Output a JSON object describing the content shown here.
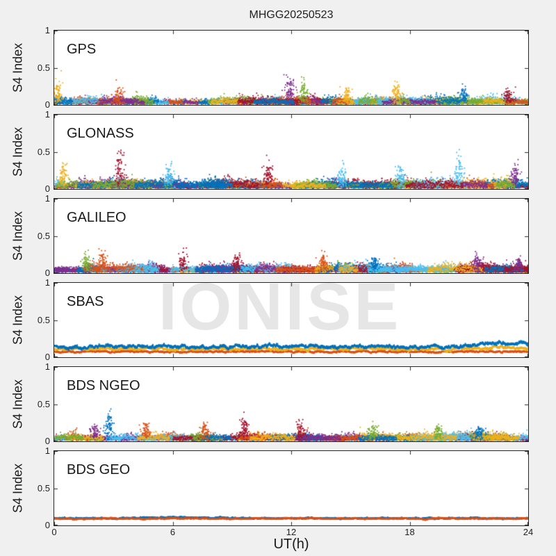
{
  "figure": {
    "background": "#f0f0f0",
    "panel_background": "#ffffff",
    "border_color": "#262626",
    "tick_color": "#262626",
    "text_color": "#1f1f1f"
  },
  "watermark": {
    "text": "IONISE",
    "color": "#e6e6e6"
  },
  "chart_data": {
    "type": "scatter",
    "title": "MHGG20250523",
    "xlabel": "UT(h)",
    "ylabel": "S4 Index",
    "xlim": [
      0,
      24
    ],
    "ylim": [
      0,
      1
    ],
    "xticks": [
      0,
      6,
      12,
      18,
      24
    ],
    "xtick_labels": [
      "0",
      "6",
      "12",
      "18",
      "24"
    ],
    "yticks": [
      0,
      0.5,
      1
    ],
    "ytick_labels": [
      "0",
      "0.5",
      "1"
    ],
    "grid": false,
    "legend": "none",
    "palette": [
      "#0072BD",
      "#D95319",
      "#EDB120",
      "#7E2F8E",
      "#77AC30",
      "#4DBEEE",
      "#A2142F"
    ],
    "panels": [
      {
        "label": "GPS",
        "kind": "scatter",
        "seed": 11,
        "base": 0.05,
        "amp": [
          0.015,
          0.05
        ],
        "arcs": 52,
        "typical_range": [
          0,
          0.2
        ],
        "spikes": [
          {
            "t": 0.15,
            "h": 0.27,
            "c": 2
          },
          {
            "t": 3.2,
            "h": 0.2,
            "c": 1
          },
          {
            "t": 11.9,
            "h": 0.33,
            "c": 3
          },
          {
            "t": 12.6,
            "h": 0.27,
            "c": 4
          },
          {
            "t": 14.8,
            "h": 0.2,
            "c": 2
          },
          {
            "t": 17.3,
            "h": 0.24,
            "c": 2
          },
          {
            "t": 20.7,
            "h": 0.22,
            "c": 0
          },
          {
            "t": 23.0,
            "h": 0.2,
            "c": 6
          }
        ]
      },
      {
        "label": "GLONASS",
        "kind": "scatter",
        "seed": 22,
        "base": 0.06,
        "amp": [
          0.02,
          0.06
        ],
        "arcs": 52,
        "typical_range": [
          0,
          0.25
        ],
        "spikes": [
          {
            "t": 0.4,
            "h": 0.27,
            "c": 2
          },
          {
            "t": 3.3,
            "h": 0.43,
            "c": 6
          },
          {
            "t": 5.8,
            "h": 0.28,
            "c": 5
          },
          {
            "t": 10.8,
            "h": 0.3,
            "c": 6
          },
          {
            "t": 14.5,
            "h": 0.25,
            "c": 5
          },
          {
            "t": 17.5,
            "h": 0.28,
            "c": 5
          },
          {
            "t": 20.5,
            "h": 0.38,
            "c": 5
          },
          {
            "t": 23.3,
            "h": 0.28,
            "c": 3
          }
        ]
      },
      {
        "label": "GALILEO",
        "kind": "scatter",
        "seed": 33,
        "base": 0.06,
        "amp": [
          0.02,
          0.05
        ],
        "arcs": 54,
        "typical_range": [
          0,
          0.2
        ],
        "spikes": [
          {
            "t": 1.6,
            "h": 0.22,
            "c": 4
          },
          {
            "t": 2.4,
            "h": 0.26,
            "c": 1
          },
          {
            "t": 6.5,
            "h": 0.2,
            "c": 6
          },
          {
            "t": 9.2,
            "h": 0.22,
            "c": 6
          },
          {
            "t": 13.6,
            "h": 0.24,
            "c": 1
          },
          {
            "t": 16.2,
            "h": 0.2,
            "c": 0
          },
          {
            "t": 21.4,
            "h": 0.22,
            "c": 3
          },
          {
            "t": 23.5,
            "h": 0.2,
            "c": 3
          }
        ]
      },
      {
        "label": "SBAS",
        "kind": "lines",
        "seed": 44,
        "series": [
          {
            "c": 1,
            "level": 0.075,
            "amp": 0.006,
            "t0": 0,
            "t1": 24,
            "bumps": []
          },
          {
            "c": 2,
            "level": 0.112,
            "amp": 0.01,
            "t0": 0,
            "t1": 24,
            "bumps": [
              {
                "t": 22.6,
                "dv": 0.03,
                "w": 0.8
              }
            ]
          },
          {
            "c": 0,
            "level": 0.146,
            "amp": 0.012,
            "t0": 0,
            "t1": 24,
            "bumps": [
              {
                "t": 16.8,
                "dv": 0.015,
                "w": 0.6
              },
              {
                "t": 21.9,
                "dv": 0.05,
                "w": 1.4
              },
              {
                "t": 23.7,
                "dv": 0.05,
                "w": 0.4
              }
            ]
          }
        ]
      },
      {
        "label": "BDS NGEO",
        "kind": "scatter",
        "seed": 55,
        "base": 0.05,
        "amp": [
          0.015,
          0.05
        ],
        "arcs": 50,
        "typical_range": [
          0,
          0.2
        ],
        "spikes": [
          {
            "t": 2.0,
            "h": 0.2,
            "c": 3
          },
          {
            "t": 2.75,
            "h": 0.34,
            "c": 0
          },
          {
            "t": 4.6,
            "h": 0.24,
            "c": 1
          },
          {
            "t": 7.6,
            "h": 0.22,
            "c": 1
          },
          {
            "t": 9.6,
            "h": 0.28,
            "c": 6
          },
          {
            "t": 12.4,
            "h": 0.2,
            "c": 6
          },
          {
            "t": 16.1,
            "h": 0.2,
            "c": 4
          },
          {
            "t": 19.4,
            "h": 0.2,
            "c": 4
          },
          {
            "t": 21.5,
            "h": 0.18,
            "c": 0
          }
        ]
      },
      {
        "label": "BDS GEO",
        "kind": "lines",
        "seed": 66,
        "series": [
          {
            "c": 0,
            "level": 0.098,
            "amp": 0.005,
            "t0": 0,
            "t1": 24,
            "bumps": [
              {
                "t": 6,
                "dv": 0.01,
                "w": 3
              }
            ]
          },
          {
            "c": 1,
            "level": 0.094,
            "amp": 0.004,
            "t0": 0,
            "t1": 24,
            "bumps": []
          }
        ]
      }
    ]
  }
}
